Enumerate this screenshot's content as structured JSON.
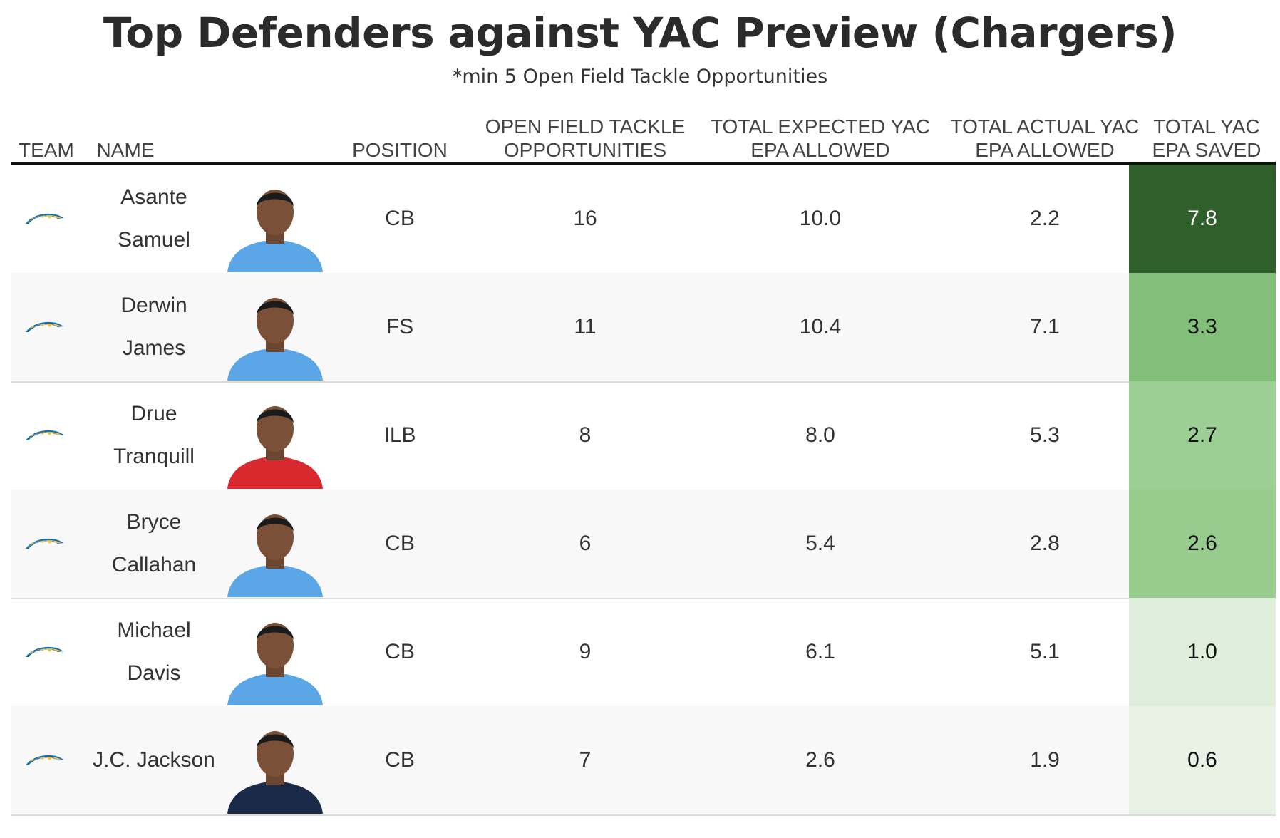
{
  "title": "Top Defenders against YAC Preview (Chargers)",
  "subtitle": "*min 5 Open Field Tackle Opportunities",
  "headers": {
    "team": "TEAM",
    "name": "NAME",
    "position": "POSITION",
    "opportunities": "OPEN FIELD TACKLE\nOPPORTUNITIES",
    "expected": "TOTAL EXPECTED YAC\nEPA ALLOWED",
    "actual": "TOTAL ACTUAL YAC\nEPA ALLOWED",
    "saved": "TOTAL YAC\nEPA SAVED"
  },
  "icons": {
    "team_logo": "chargers-bolt-logo",
    "player_photo": "player-headshot"
  },
  "colors": {
    "saved_scale": [
      "#2f5f2a",
      "#82c07a",
      "#9ccf94",
      "#98cc8f",
      "#dfeedb",
      "#e7f2e4"
    ],
    "saved_text": [
      "#ffffff",
      "#111111",
      "#111111",
      "#111111",
      "#111111",
      "#111111"
    ],
    "jerseys": [
      "#5aa6e6",
      "#5aa6e6",
      "#d8292f",
      "#5aa6e6",
      "#5aa6e6",
      "#1c2a4a"
    ]
  },
  "chart_data": {
    "type": "table",
    "columns": [
      "TEAM",
      "NAME",
      "POSITION",
      "OPEN FIELD TACKLE OPPORTUNITIES",
      "TOTAL EXPECTED YAC EPA ALLOWED",
      "TOTAL ACTUAL YAC EPA ALLOWED",
      "TOTAL YAC EPA SAVED"
    ],
    "rows": [
      {
        "name": "Asante\nSamuel",
        "position": "CB",
        "opportunities": "16",
        "expected": "10.0",
        "actual": "2.2",
        "saved": "7.8"
      },
      {
        "name": "Derwin\nJames",
        "position": "FS",
        "opportunities": "11",
        "expected": "10.4",
        "actual": "7.1",
        "saved": "3.3"
      },
      {
        "name": "Drue\nTranquill",
        "position": "ILB",
        "opportunities": "8",
        "expected": "8.0",
        "actual": "5.3",
        "saved": "2.7"
      },
      {
        "name": "Bryce\nCallahan",
        "position": "CB",
        "opportunities": "6",
        "expected": "5.4",
        "actual": "2.8",
        "saved": "2.6"
      },
      {
        "name": "Michael\nDavis",
        "position": "CB",
        "opportunities": "9",
        "expected": "6.1",
        "actual": "5.1",
        "saved": "1.0"
      },
      {
        "name": "J.C. Jackson",
        "position": "CB",
        "opportunities": "7",
        "expected": "2.6",
        "actual": "1.9",
        "saved": "0.6"
      }
    ]
  }
}
